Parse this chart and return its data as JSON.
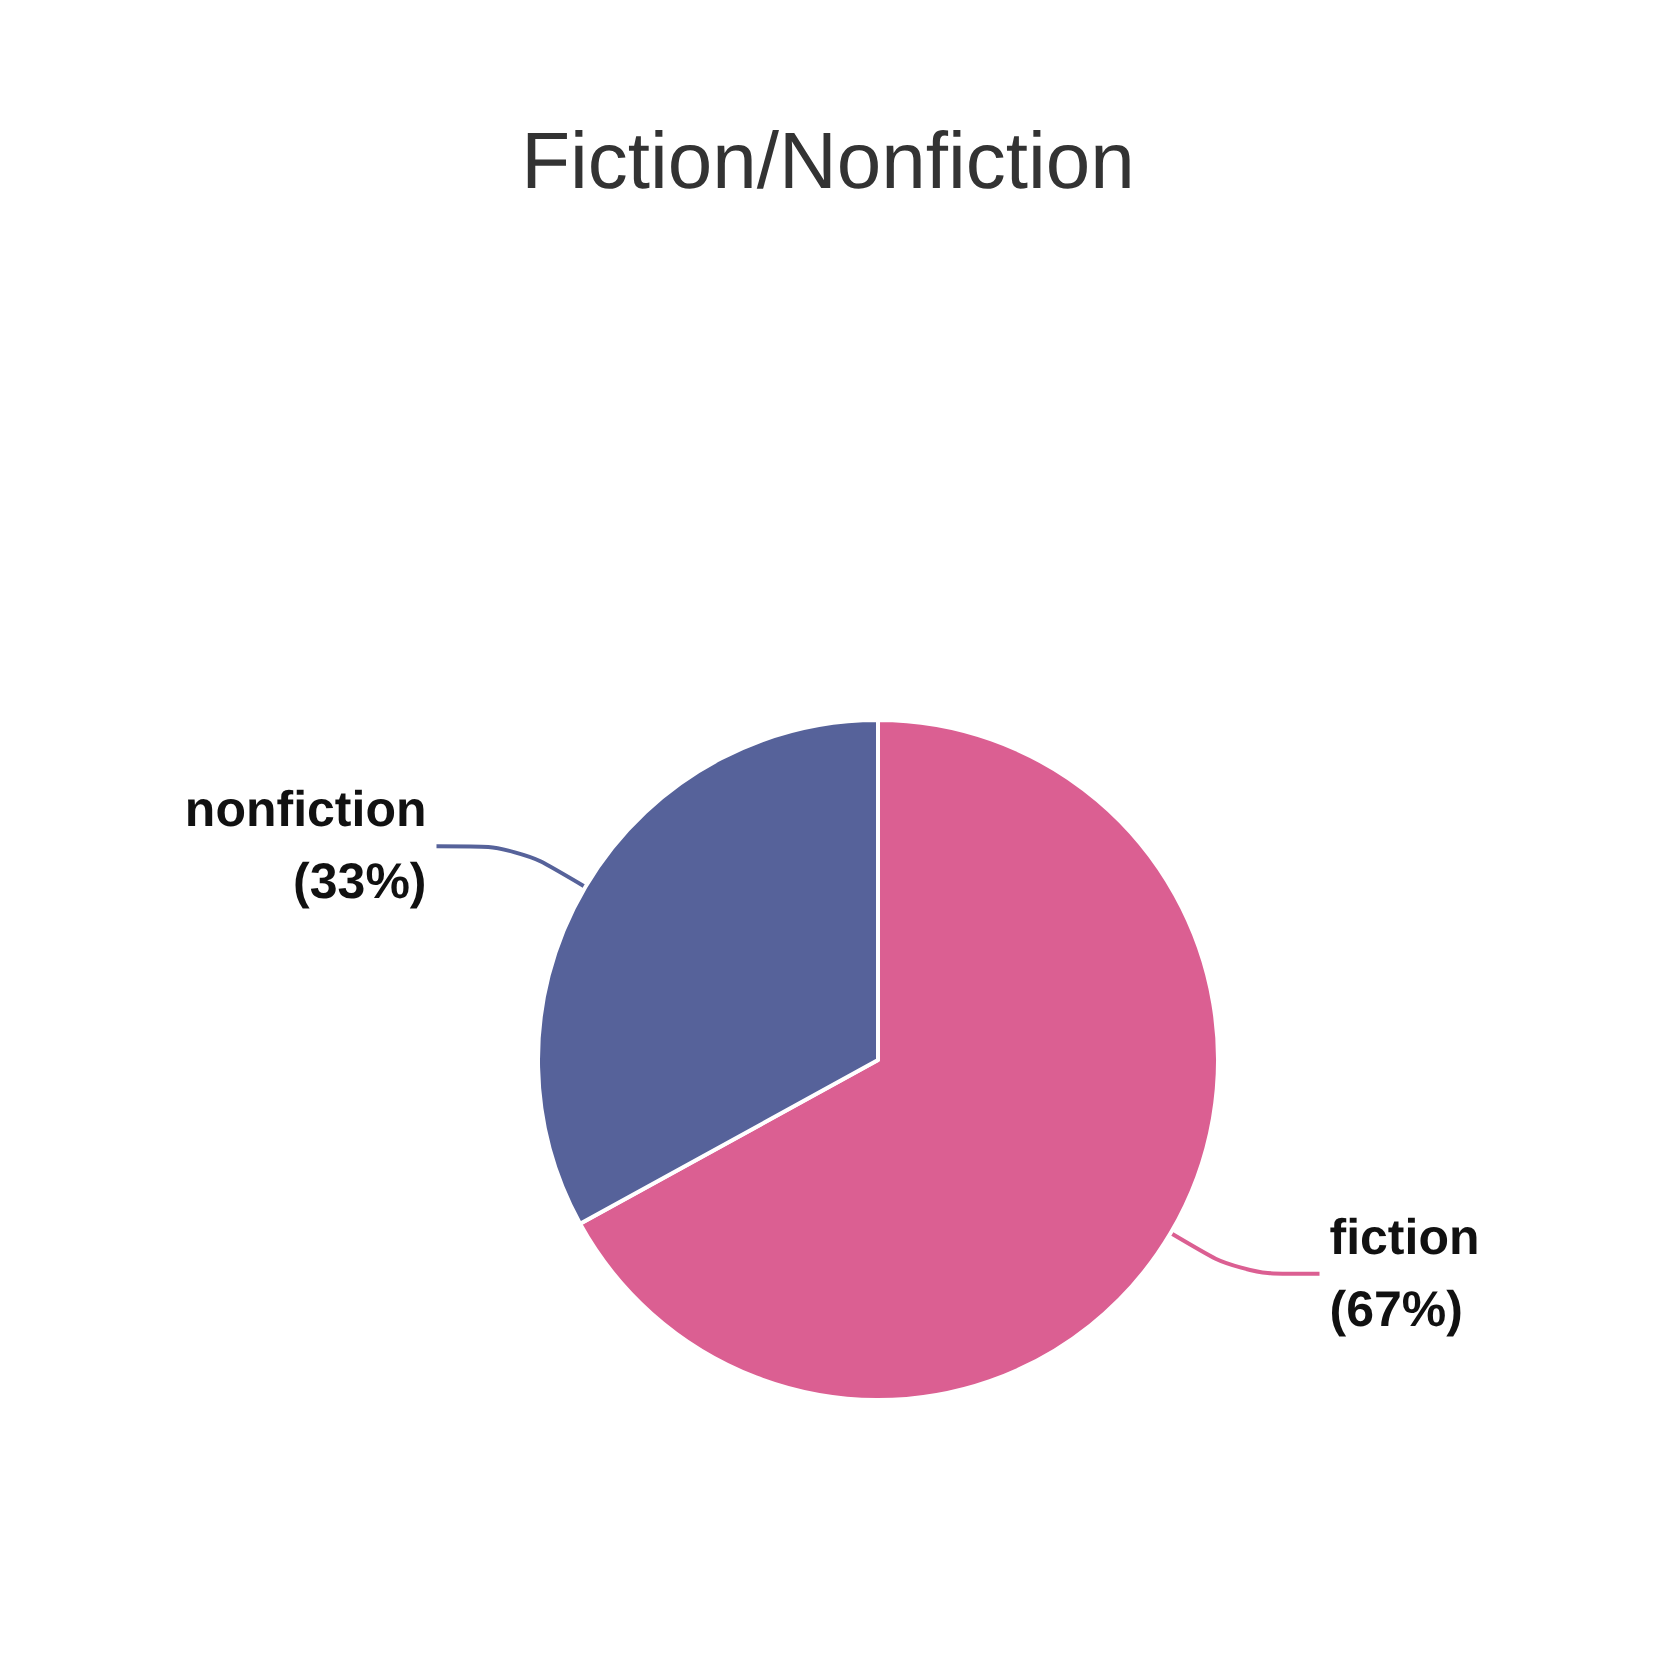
{
  "chart_data": {
    "type": "pie",
    "title": "Fiction/Nonfiction",
    "categories": [
      "fiction",
      "nonfiction"
    ],
    "values": [
      67,
      33
    ],
    "value_labels": [
      "(67%)",
      "(33%)"
    ],
    "colors": [
      "#db5f92",
      "#56629a"
    ],
    "legend": false
  }
}
